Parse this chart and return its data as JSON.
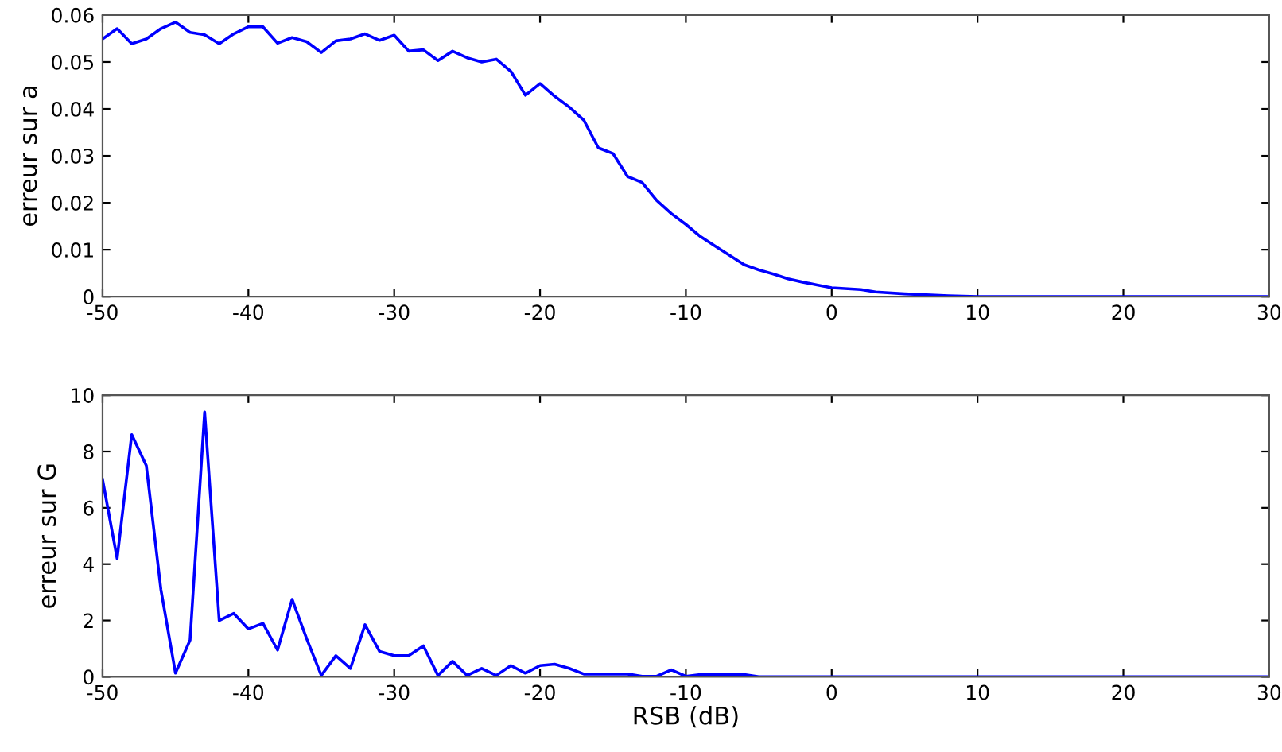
{
  "chart_data": [
    {
      "type": "line",
      "ylabel": "erreur sur a",
      "xlim": [
        -50,
        30
      ],
      "ylim": [
        0,
        0.06
      ],
      "xticks": [
        -50,
        -40,
        -30,
        -20,
        -10,
        0,
        10,
        20,
        30
      ],
      "yticks": [
        0,
        0.01,
        0.02,
        0.03,
        0.04,
        0.05,
        0.06
      ],
      "grid": false,
      "legend": false,
      "series": [
        {
          "color": "#0000ff",
          "x": [
            -50,
            -49,
            -48,
            -47,
            -46,
            -45,
            -44,
            -43,
            -42,
            -41,
            -40,
            -39,
            -38,
            -37,
            -36,
            -35,
            -34,
            -33,
            -32,
            -31,
            -30,
            -29,
            -28,
            -27,
            -26,
            -25,
            -24,
            -23,
            -22,
            -21,
            -20,
            -19,
            -18,
            -17,
            -16,
            -15,
            -14,
            -13,
            -12,
            -11,
            -10,
            -9,
            -8,
            -7,
            -6,
            -5,
            -4,
            -3,
            -2,
            -1,
            0,
            2,
            3,
            5,
            8,
            10,
            20,
            30
          ],
          "values": [
            0.0549,
            0.0571,
            0.0539,
            0.0549,
            0.0571,
            0.0585,
            0.0563,
            0.0558,
            0.0539,
            0.056,
            0.0575,
            0.0575,
            0.054,
            0.0552,
            0.0543,
            0.052,
            0.0545,
            0.0549,
            0.056,
            0.0546,
            0.0557,
            0.0523,
            0.0526,
            0.0503,
            0.0523,
            0.0509,
            0.05,
            0.0506,
            0.048,
            0.0429,
            0.0454,
            0.0427,
            0.0404,
            0.0376,
            0.0317,
            0.0305,
            0.0256,
            0.0243,
            0.0205,
            0.0177,
            0.0154,
            0.0128,
            0.0108,
            0.0088,
            0.0068,
            0.0057,
            0.0048,
            0.0038,
            0.0031,
            0.0025,
            0.0019,
            0.0015,
            0.001,
            0.0006,
            0.0002,
            0,
            0,
            0
          ]
        }
      ]
    },
    {
      "type": "line",
      "ylabel": "erreur sur G",
      "xlabel": "RSB (dB)",
      "xlim": [
        -50,
        30
      ],
      "ylim": [
        0,
        10
      ],
      "xticks": [
        -50,
        -40,
        -30,
        -20,
        -10,
        0,
        10,
        20,
        30
      ],
      "yticks": [
        0,
        2,
        4,
        6,
        8,
        10
      ],
      "grid": false,
      "legend": false,
      "series": [
        {
          "color": "#0000ff",
          "x": [
            -50,
            -49,
            -48,
            -47,
            -46,
            -45,
            -44,
            -43,
            -42,
            -41,
            -40,
            -39,
            -38,
            -37,
            -36,
            -35,
            -34,
            -33,
            -32,
            -31,
            -30,
            -29,
            -28,
            -27,
            -26,
            -25,
            -24,
            -23,
            -22,
            -21,
            -20,
            -19,
            -18,
            -17,
            -16,
            -15,
            -14,
            -13,
            -12,
            -11,
            -10,
            -9,
            -8,
            -7,
            -6,
            -5,
            0,
            10,
            20,
            30
          ],
          "values": [
            7.0,
            4.2,
            8.6,
            7.5,
            3.1,
            0.13,
            1.3,
            9.4,
            2.0,
            2.25,
            1.7,
            1.9,
            0.95,
            2.75,
            1.35,
            0.05,
            0.75,
            0.3,
            1.85,
            0.9,
            0.75,
            0.75,
            1.1,
            0.05,
            0.55,
            0.05,
            0.3,
            0.05,
            0.4,
            0.13,
            0.4,
            0.45,
            0.3,
            0.1,
            0.1,
            0.1,
            0.1,
            0.02,
            0.02,
            0.25,
            0.02,
            0.08,
            0.08,
            0.08,
            0.08,
            0,
            0,
            0,
            0,
            0
          ]
        }
      ]
    }
  ]
}
